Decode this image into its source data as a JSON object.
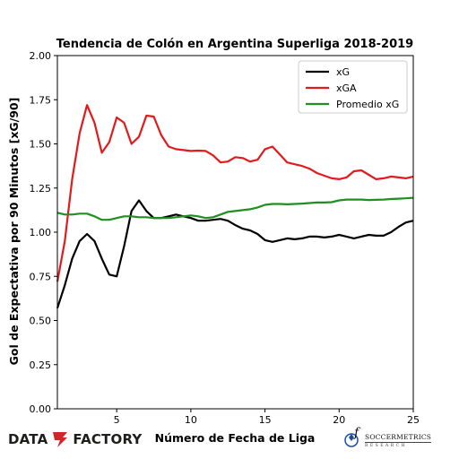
{
  "chart_data": {
    "type": "line",
    "title": "Tendencia de Colón en Argentina Superliga 2018-2019",
    "xlabel": "Número de Fecha de Liga",
    "ylabel": "Gol de Expectativa por 90 Minutos [xG/90]",
    "xlim": [
      1,
      25
    ],
    "ylim": [
      0,
      2.0
    ],
    "xticks": [
      5,
      10,
      15,
      20,
      25
    ],
    "xtick_labels": [
      "5",
      "10",
      "15",
      "20",
      "25"
    ],
    "yticks": [
      0,
      0.25,
      0.5,
      0.75,
      1.0,
      1.25,
      1.5,
      1.75,
      2.0
    ],
    "ytick_labels": [
      "0.00",
      "0.25",
      "0.50",
      "0.75",
      "1.00",
      "1.25",
      "1.50",
      "1.75",
      "2.00"
    ],
    "grid": false,
    "legend_position": "top-right",
    "series": [
      {
        "name": "xG",
        "color": "#000000",
        "x": [
          1,
          1.5,
          2,
          2.5,
          3,
          3.5,
          4,
          4.5,
          5,
          5.5,
          6,
          6.5,
          7,
          7.5,
          8,
          8.5,
          9,
          9.5,
          10,
          10.5,
          11,
          11.5,
          12,
          12.5,
          13,
          13.5,
          14,
          14.5,
          15,
          15.5,
          16,
          16.5,
          17,
          17.5,
          18,
          18.5,
          19,
          19.5,
          20,
          20.5,
          21,
          21.5,
          22,
          22.5,
          23,
          23.5,
          24,
          24.5,
          25
        ],
        "y": [
          0.57,
          0.7,
          0.85,
          0.95,
          0.99,
          0.95,
          0.85,
          0.76,
          0.75,
          0.92,
          1.12,
          1.18,
          1.12,
          1.08,
          1.08,
          1.09,
          1.1,
          1.09,
          1.08,
          1.065,
          1.065,
          1.07,
          1.075,
          1.065,
          1.04,
          1.02,
          1.01,
          0.99,
          0.955,
          0.945,
          0.955,
          0.965,
          0.96,
          0.965,
          0.975,
          0.975,
          0.97,
          0.975,
          0.985,
          0.975,
          0.965,
          0.975,
          0.985,
          0.98,
          0.98,
          1.0,
          1.03,
          1.055,
          1.065
        ]
      },
      {
        "name": "xGA",
        "color": "#e31a1c",
        "x": [
          1,
          1.5,
          2,
          2.5,
          3,
          3.5,
          4,
          4.5,
          5,
          5.5,
          6,
          6.5,
          7,
          7.5,
          8,
          8.5,
          9,
          9.5,
          10,
          10.5,
          11,
          11.5,
          12,
          12.5,
          13,
          13.5,
          14,
          14.5,
          15,
          15.5,
          16,
          16.5,
          17,
          17.5,
          18,
          18.5,
          19,
          19.5,
          20,
          20.5,
          21,
          21.5,
          22,
          22.5,
          23,
          23.5,
          24,
          24.5,
          25
        ],
        "y": [
          0.72,
          0.95,
          1.3,
          1.56,
          1.72,
          1.62,
          1.45,
          1.51,
          1.65,
          1.62,
          1.5,
          1.54,
          1.66,
          1.655,
          1.55,
          1.485,
          1.47,
          1.465,
          1.46,
          1.462,
          1.46,
          1.435,
          1.395,
          1.4,
          1.425,
          1.42,
          1.4,
          1.41,
          1.47,
          1.485,
          1.44,
          1.395,
          1.385,
          1.375,
          1.36,
          1.335,
          1.32,
          1.305,
          1.3,
          1.31,
          1.345,
          1.35,
          1.325,
          1.3,
          1.305,
          1.315,
          1.31,
          1.305,
          1.315
        ]
      },
      {
        "name": "Promedio xG",
        "color": "#1f8f1f",
        "x": [
          1,
          1.5,
          2,
          2.5,
          3,
          3.5,
          4,
          4.5,
          5,
          5.5,
          6,
          6.5,
          7,
          7.5,
          8,
          8.5,
          9,
          9.5,
          10,
          10.5,
          11,
          11.5,
          12,
          12.5,
          13,
          13.5,
          14,
          14.5,
          15,
          15.5,
          16,
          16.5,
          17,
          17.5,
          18,
          18.5,
          19,
          19.5,
          20,
          20.5,
          21,
          21.5,
          22,
          22.5,
          23,
          23.5,
          24,
          24.5,
          25
        ],
        "y": [
          1.11,
          1.1,
          1.1,
          1.105,
          1.105,
          1.09,
          1.07,
          1.07,
          1.08,
          1.09,
          1.09,
          1.085,
          1.085,
          1.08,
          1.08,
          1.08,
          1.085,
          1.09,
          1.095,
          1.09,
          1.08,
          1.085,
          1.1,
          1.115,
          1.12,
          1.125,
          1.13,
          1.14,
          1.155,
          1.16,
          1.16,
          1.158,
          1.16,
          1.162,
          1.165,
          1.168,
          1.168,
          1.17,
          1.18,
          1.185,
          1.185,
          1.185,
          1.182,
          1.183,
          1.185,
          1.188,
          1.19,
          1.192,
          1.195
        ]
      }
    ]
  },
  "logos": {
    "left_part1": "DATA",
    "left_part2": "FACTORY",
    "right_name": "SOCCERMETRICS",
    "right_tag": "RESEARCH",
    "left_accent_color": "#d3242a"
  }
}
